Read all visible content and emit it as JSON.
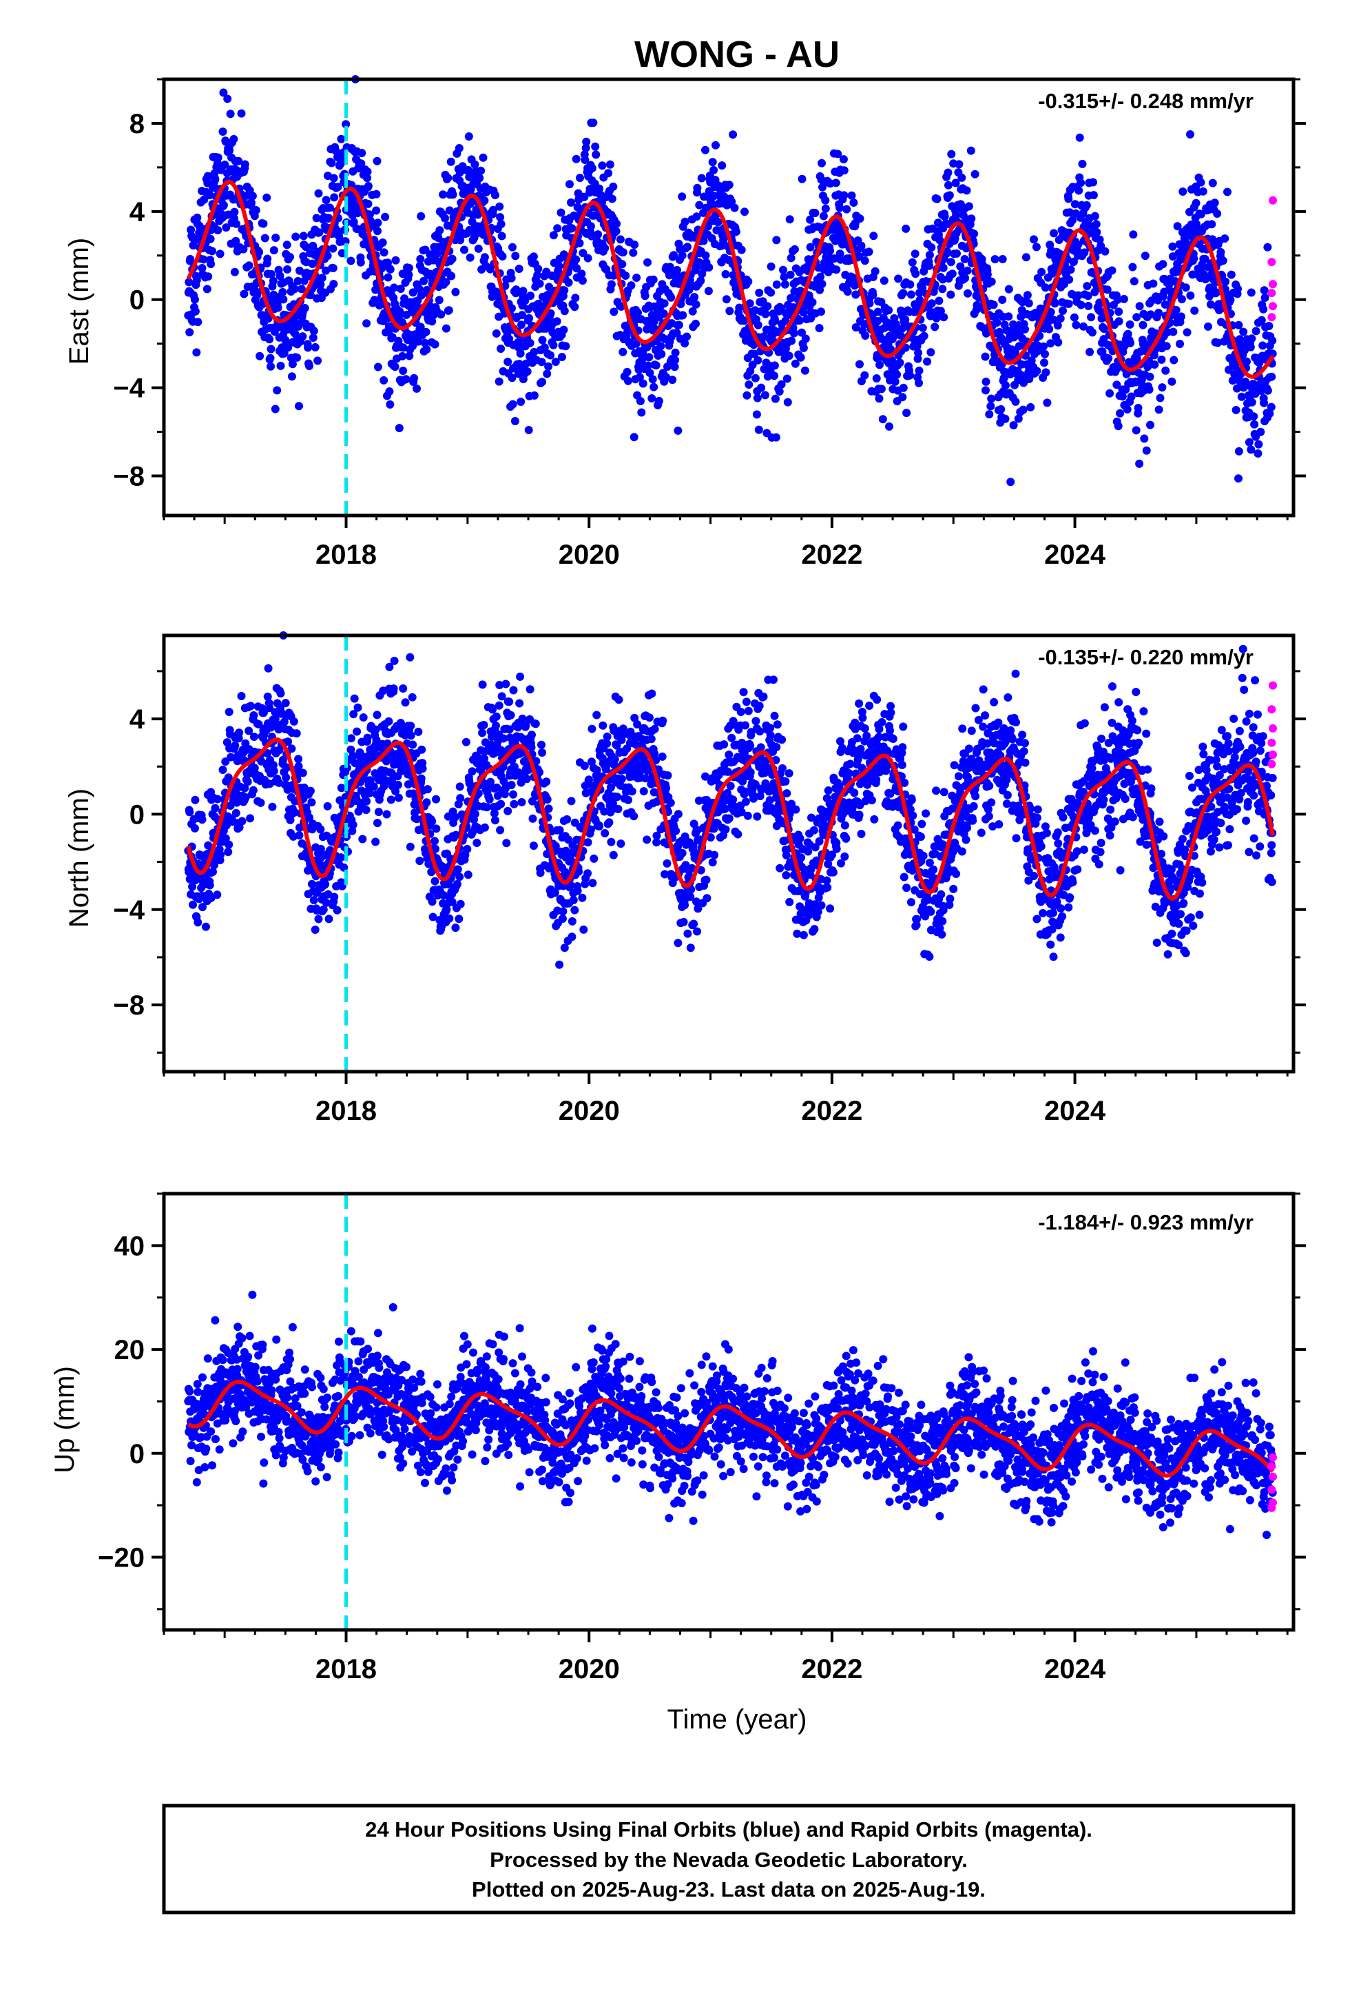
{
  "title": "WONG - AU",
  "footer": {
    "line1": "24 Hour Positions Using Final Orbits (blue) and Rapid Orbits (magenta).",
    "line2": "Processed by the Nevada Geodetic Laboratory.",
    "line3": "Plotted on 2025-Aug-23. Last data on 2025-Aug-19."
  },
  "colors": {
    "final_orbits": "#0000ff",
    "rapid_orbits": "#ff00ff",
    "model_fit": "#ff0000",
    "event_line": "#00e5ee",
    "frame": "#000000"
  },
  "chart_data": [
    {
      "type": "scatter",
      "panel": "east",
      "ylabel": "East (mm)",
      "xlabel": "",
      "rate_label": "-0.315+/- 0.248 mm/yr",
      "xlim": [
        2016.5,
        2025.8
      ],
      "ylim": [
        -9.8,
        10
      ],
      "x_ticks": [
        2018,
        2020,
        2022,
        2024
      ],
      "y_ticks": [
        -8,
        -4,
        0,
        4,
        8
      ],
      "event_line_x": 2018.0,
      "data_span": [
        2016.7,
        2025.63
      ],
      "fit": {
        "trend_mm_per_yr": -0.315,
        "offset": 0.7,
        "annual_amp": 3.0,
        "annual_phase": 1.5,
        "semiannual_amp": 0.5,
        "semiannual_phase": 0.6
      },
      "scatter_sd": 1.6,
      "rapid_points": [
        {
          "x": 2025.63,
          "y": 4.5
        },
        {
          "x": 2025.62,
          "y": 1.7
        },
        {
          "x": 2025.63,
          "y": 0.7
        },
        {
          "x": 2025.62,
          "y": 0.3
        },
        {
          "x": 2025.63,
          "y": -0.3
        },
        {
          "x": 2025.62,
          "y": -0.8
        }
      ]
    },
    {
      "type": "scatter",
      "panel": "north",
      "ylabel": "North (mm)",
      "xlabel": "",
      "rate_label": "-0.135+/- 0.220 mm/yr",
      "xlim": [
        2016.5,
        2025.8
      ],
      "ylim": [
        -10.8,
        7.5
      ],
      "x_ticks": [
        2018,
        2020,
        2022,
        2024
      ],
      "y_ticks": [
        -8,
        -4,
        0,
        4
      ],
      "event_line_x": 2018.0,
      "data_span": [
        2016.7,
        2025.63
      ],
      "fit": {
        "trend_mm_per_yr": -0.135,
        "offset": 0.3,
        "annual_amp": 2.6,
        "annual_phase": -0.5,
        "semiannual_amp": 0.8,
        "semiannual_phase": 1.2
      },
      "scatter_sd": 1.3,
      "rapid_points": [
        {
          "x": 2025.63,
          "y": 5.4
        },
        {
          "x": 2025.62,
          "y": 4.4
        },
        {
          "x": 2025.63,
          "y": 3.6
        },
        {
          "x": 2025.62,
          "y": 3.0
        },
        {
          "x": 2025.63,
          "y": 2.5
        },
        {
          "x": 2025.62,
          "y": 2.1
        }
      ]
    },
    {
      "type": "scatter",
      "panel": "up",
      "ylabel": "Up (mm)",
      "xlabel": "Time (year)",
      "rate_label": "-1.184+/- 0.923 mm/yr",
      "xlim": [
        2016.5,
        2025.8
      ],
      "ylim": [
        -34,
        50
      ],
      "x_ticks": [
        2018,
        2020,
        2022,
        2024
      ],
      "y_ticks": [
        -20,
        0,
        20,
        40
      ],
      "event_line_x": 2018.0,
      "data_span": [
        2016.7,
        2025.63
      ],
      "fit": {
        "trend_mm_per_yr": -1.184,
        "offset": 5.0,
        "annual_amp": 4.0,
        "annual_phase": 0.3,
        "semiannual_amp": 1.2,
        "semiannual_phase": 1.0
      },
      "scatter_sd": 5.0,
      "rapid_points": [
        {
          "x": 2025.63,
          "y": -0.8
        },
        {
          "x": 2025.62,
          "y": -2.5
        },
        {
          "x": 2025.63,
          "y": -4.5
        },
        {
          "x": 2025.62,
          "y": -7.0
        },
        {
          "x": 2025.63,
          "y": -9.5
        },
        {
          "x": 2025.62,
          "y": -10.5
        }
      ]
    }
  ]
}
